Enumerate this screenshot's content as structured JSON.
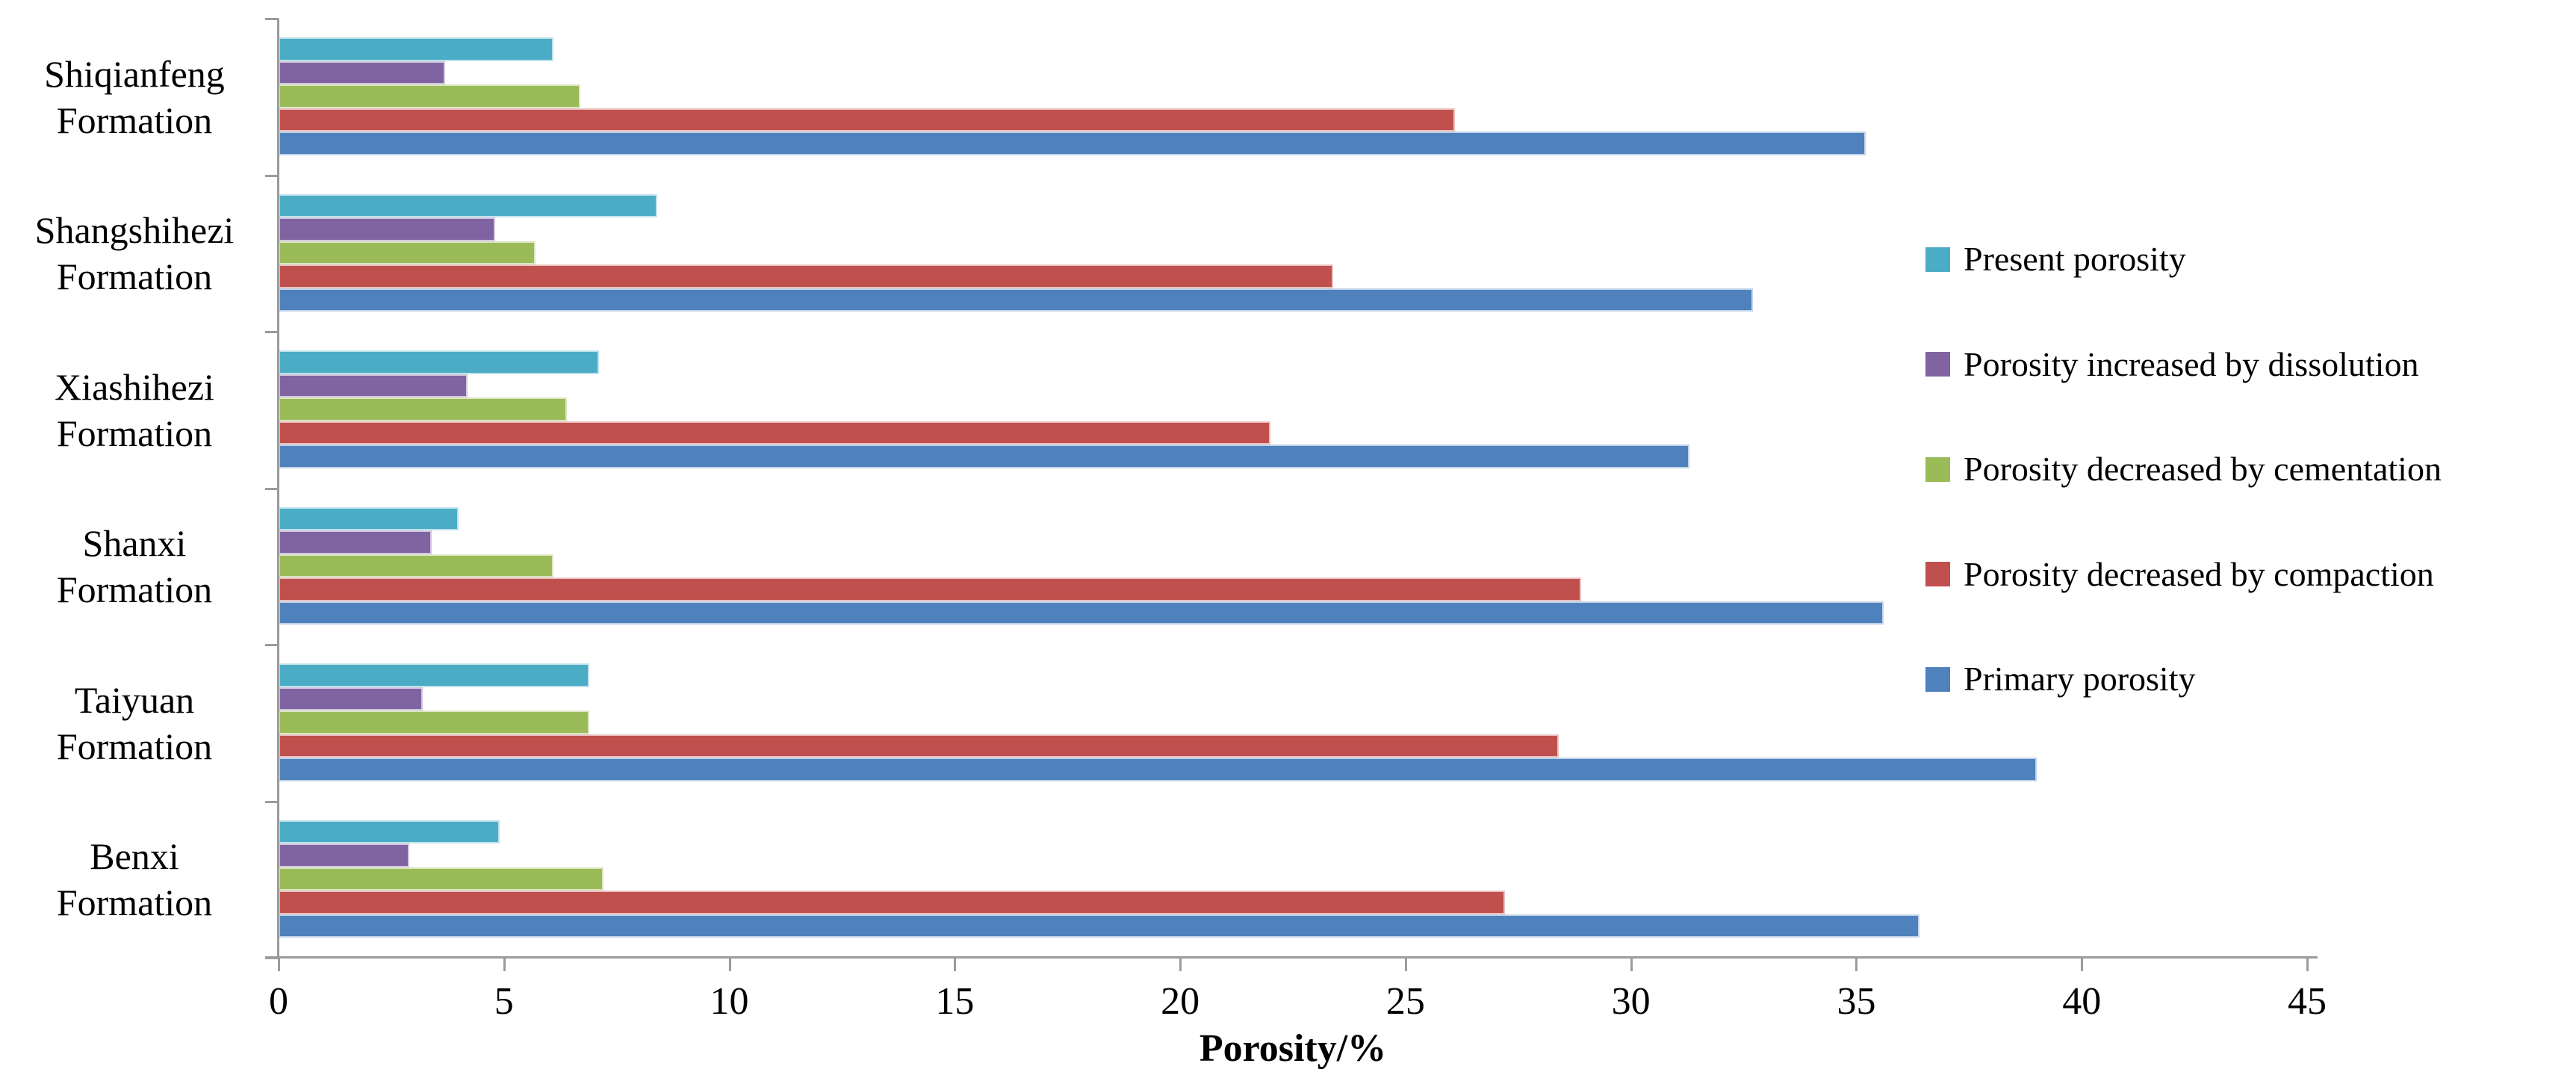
{
  "chart_data": {
    "type": "bar",
    "orientation": "horizontal",
    "title": "",
    "xlabel": "Porosity/%",
    "xlim": [
      0,
      45
    ],
    "x_ticks": [
      0,
      5,
      10,
      15,
      20,
      25,
      30,
      35,
      40,
      45
    ],
    "grid": false,
    "legend_position": "right",
    "axis_color": "#9b9b9b",
    "text_color": "#000000",
    "categories": [
      "Shiqianfeng Formation",
      "Shangshihezi Formation",
      "Xiashihezi Formation",
      "Shanxi Formation",
      "Taiyuan Formation",
      "Benxi Formation"
    ],
    "category_lines": [
      [
        "Shiqianfeng",
        "Formation"
      ],
      [
        "Shangshihezi",
        "Formation"
      ],
      [
        "Xiashihezi",
        "Formation"
      ],
      [
        "Shanxi",
        "Formation"
      ],
      [
        "Taiyuan",
        "Formation"
      ],
      [
        "Benxi",
        "Formation"
      ]
    ],
    "series": [
      {
        "name": "Present porosity",
        "color": "#4BACC6",
        "values": [
          6.1,
          8.4,
          7.1,
          4.0,
          6.9,
          4.9
        ]
      },
      {
        "name": "Porosity increased by dissolution",
        "color": "#8064A2",
        "values": [
          3.7,
          4.8,
          4.2,
          3.4,
          3.2,
          2.9
        ]
      },
      {
        "name": "Porosity decreased by cementation",
        "color": "#9BBB59",
        "values": [
          6.7,
          5.7,
          6.4,
          6.1,
          6.9,
          7.2
        ]
      },
      {
        "name": "Porosity decreased by compaction",
        "color": "#C0504D",
        "values": [
          26.1,
          23.4,
          22.0,
          28.9,
          28.4,
          27.2
        ]
      },
      {
        "name": "Primary porosity",
        "color": "#4F81BD",
        "values": [
          35.2,
          32.7,
          31.3,
          35.6,
          39.0,
          36.4
        ]
      }
    ]
  }
}
